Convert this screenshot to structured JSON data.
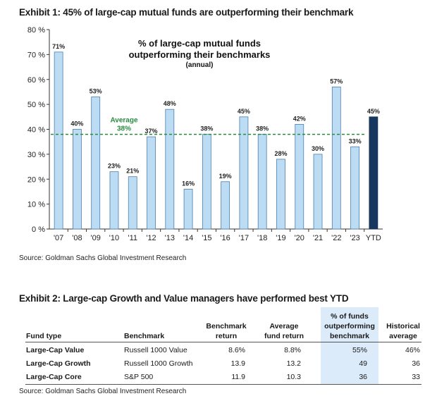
{
  "exhibit1": {
    "title": "Exhibit 1: 45% of large-cap mutual funds are outperforming their benchmark",
    "source": "Source: Goldman Sachs Global Investment Research"
  },
  "chart_data": {
    "type": "bar",
    "title": "% of large-cap mutual funds outperforming their benchmarks",
    "title_lines": [
      "% of large-cap mutual funds",
      "outperforming their benchmarks"
    ],
    "subtitle": "(annual)",
    "categories": [
      "'07",
      "'08",
      "'09",
      "'10",
      "'11",
      "'12",
      "'13",
      "'14",
      "'15",
      "'16",
      "'17",
      "'18",
      "'19",
      "'20",
      "'21",
      "'22",
      "'23",
      "YTD"
    ],
    "values": [
      71,
      40,
      53,
      23,
      21,
      37,
      48,
      16,
      38,
      19,
      45,
      38,
      28,
      42,
      30,
      57,
      33,
      45
    ],
    "data_labels": [
      "71%",
      "40%",
      "53%",
      "23%",
      "21%",
      "37%",
      "48%",
      "16%",
      "38%",
      "19%",
      "45%",
      "38%",
      "28%",
      "42%",
      "30%",
      "57%",
      "33%",
      "45%"
    ],
    "ylim": [
      0,
      80
    ],
    "y_ticks": [
      0,
      10,
      20,
      30,
      40,
      50,
      60,
      70,
      80
    ],
    "y_tick_labels": [
      "0 %",
      "10 %",
      "20 %",
      "30 %",
      "40 %",
      "50 %",
      "60 %",
      "70 %",
      "80 %"
    ],
    "average": {
      "label": "Average",
      "value_label": "38%",
      "value": 38
    },
    "colors": {
      "bar": "#bcdcf3",
      "bar_stroke": "#4a7fb0",
      "ytd_bar": "#17375e",
      "average_line": "#2a8a3e",
      "average_text": "#2a8a3e"
    },
    "grid": false
  },
  "exhibit2": {
    "title": "Exhibit 2: Large-cap Growth and Value managers have performed best YTD",
    "headers": {
      "fund_type": "Fund type",
      "benchmark": "Benchmark",
      "benchmark_return": [
        "Benchmark",
        "return"
      ],
      "avg_fund_return": [
        "Average",
        "fund return"
      ],
      "pct_outperforming": [
        "% of funds",
        "outperforming",
        "benchmark"
      ],
      "historical_avg": [
        "Historical",
        "average"
      ]
    },
    "rows": [
      {
        "fund_type": "Large-Cap Value",
        "benchmark": "Russell 1000 Value",
        "benchmark_return": "8.6%",
        "avg_fund_return": "8.8%",
        "pct_outperforming": "55%",
        "historical_avg": "46%"
      },
      {
        "fund_type": "Large-Cap Growth",
        "benchmark": "Russell 1000 Growth",
        "benchmark_return": "13.9",
        "avg_fund_return": "13.2",
        "pct_outperforming": "49",
        "historical_avg": "36"
      },
      {
        "fund_type": "Large-Cap Core",
        "benchmark": "S&P 500",
        "benchmark_return": "11.9",
        "avg_fund_return": "10.3",
        "pct_outperforming": "36",
        "historical_avg": "33"
      }
    ],
    "highlight_color": "#dcebfa",
    "source": "Source: Goldman Sachs Global Investment Research"
  }
}
